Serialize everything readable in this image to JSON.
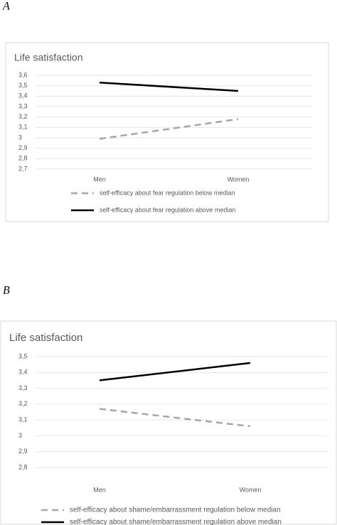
{
  "chart_data": [
    {
      "type": "line",
      "panel": "A",
      "title": "Life satisfaction",
      "categories": [
        "Men",
        "Women"
      ],
      "series": [
        {
          "name": "self-efficacy about fear regulation below median",
          "color": "#a6a6a6",
          "style": "dashed",
          "values": [
            2.99,
            3.18
          ]
        },
        {
          "name": "self-efficacy about fear regulation above median",
          "color": "#000000",
          "style": "solid",
          "values": [
            3.53,
            3.45
          ]
        }
      ],
      "ylim": [
        2.7,
        3.6
      ],
      "yticks": [
        {
          "value": 2.7,
          "label": "2,7"
        },
        {
          "value": 2.8,
          "label": "2,8"
        },
        {
          "value": 2.9,
          "label": "2,9"
        },
        3,
        {
          "value": 3.1,
          "label": "3,1"
        },
        {
          "value": 3.2,
          "label": "3,2"
        },
        {
          "value": 3.3,
          "label": "3,3"
        },
        {
          "value": 3.4,
          "label": "3,4"
        },
        {
          "value": 3.5,
          "label": "3,5"
        },
        {
          "value": 3.6,
          "label": "3,6"
        }
      ],
      "grid": true,
      "legend": "bottom"
    },
    {
      "type": "line",
      "panel": "B",
      "title": "Life satisfaction",
      "categories": [
        "Men",
        "Women"
      ],
      "series": [
        {
          "name": "self-efficacy about shame/embarrassment regulation below median",
          "color": "#a6a6a6",
          "style": "dashed",
          "values": [
            3.17,
            3.06
          ]
        },
        {
          "name": "self-efficacy about shame/embarrassment regulation above median",
          "color": "#000000",
          "style": "solid",
          "values": [
            3.35,
            3.46
          ]
        }
      ],
      "ylim": [
        2.8,
        3.5
      ],
      "yticks": [
        {
          "value": 2.8,
          "label": "2,8"
        },
        {
          "value": 2.9,
          "label": "2,9"
        },
        3,
        {
          "value": 3.1,
          "label": "3,1"
        },
        {
          "value": 3.2,
          "label": "3,2"
        },
        {
          "value": 3.3,
          "label": "3,3"
        },
        {
          "value": 3.4,
          "label": "3,4"
        },
        {
          "value": 3.5,
          "label": "3,5"
        }
      ],
      "grid": true,
      "legend": "bottom"
    }
  ]
}
